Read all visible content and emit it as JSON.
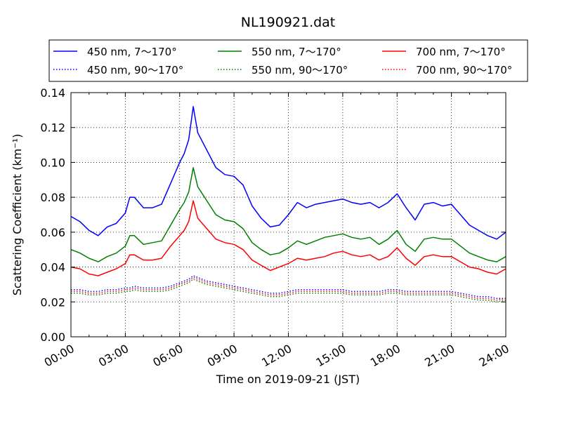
{
  "chart_data": {
    "type": "line",
    "title": "NL190921.dat",
    "xlabel": "Time on 2019-09-21 (JST)",
    "ylabel": "Scattering Coefficient (km⁻¹)",
    "x_unit": "hour of day",
    "xlim": [
      0,
      24
    ],
    "ylim": [
      0,
      0.14
    ],
    "x_ticks": [
      0,
      3,
      6,
      9,
      12,
      15,
      18,
      21,
      24
    ],
    "x_tick_labels": [
      "00:00",
      "03:00",
      "06:00",
      "09:00",
      "12:00",
      "15:00",
      "18:00",
      "21:00",
      "24:00"
    ],
    "y_ticks": [
      0,
      0.02,
      0.04,
      0.06,
      0.08,
      0.1,
      0.12,
      0.14
    ],
    "y_tick_labels": [
      "0.00",
      "0.02",
      "0.04",
      "0.06",
      "0.08",
      "0.10",
      "0.12",
      "0.14"
    ],
    "grid": true,
    "legend_position": "top, above plot, 3 columns",
    "x": [
      0,
      0.5,
      1,
      1.5,
      2,
      2.5,
      3,
      3.25,
      3.5,
      4,
      4.5,
      5,
      5.5,
      6,
      6.25,
      6.5,
      6.75,
      7,
      7.5,
      8,
      8.5,
      9,
      9.5,
      10,
      10.5,
      11,
      11.5,
      12,
      12.5,
      13,
      13.5,
      14,
      14.5,
      15,
      15.5,
      16,
      16.5,
      17,
      17.5,
      18,
      18.5,
      19,
      19.5,
      20,
      20.5,
      21,
      21.5,
      22,
      22.5,
      23,
      23.5,
      24
    ],
    "series": [
      {
        "name": "450 nm, 7～170°",
        "color": "#0000ff",
        "style": "solid",
        "values": [
          0.069,
          0.066,
          0.061,
          0.058,
          0.063,
          0.065,
          0.071,
          0.08,
          0.08,
          0.074,
          0.074,
          0.076,
          0.088,
          0.1,
          0.105,
          0.113,
          0.132,
          0.117,
          0.107,
          0.097,
          0.093,
          0.092,
          0.087,
          0.075,
          0.068,
          0.063,
          0.064,
          0.07,
          0.077,
          0.074,
          0.076,
          0.077,
          0.078,
          0.079,
          0.077,
          0.076,
          0.077,
          0.074,
          0.077,
          0.082,
          0.074,
          0.067,
          0.076,
          0.077,
          0.075,
          0.076,
          0.07,
          0.064,
          0.061,
          0.058,
          0.056,
          0.06
        ]
      },
      {
        "name": "550 nm, 7～170°",
        "color": "#008000",
        "style": "solid",
        "values": [
          0.05,
          0.048,
          0.045,
          0.043,
          0.046,
          0.048,
          0.052,
          0.058,
          0.058,
          0.053,
          0.054,
          0.055,
          0.064,
          0.073,
          0.077,
          0.083,
          0.097,
          0.086,
          0.078,
          0.07,
          0.067,
          0.066,
          0.062,
          0.054,
          0.05,
          0.047,
          0.048,
          0.051,
          0.055,
          0.053,
          0.055,
          0.057,
          0.058,
          0.059,
          0.057,
          0.056,
          0.057,
          0.053,
          0.056,
          0.061,
          0.053,
          0.049,
          0.056,
          0.057,
          0.056,
          0.056,
          0.052,
          0.048,
          0.046,
          0.044,
          0.043,
          0.046
        ]
      },
      {
        "name": "700 nm, 7～170°",
        "color": "#ff0000",
        "style": "solid",
        "values": [
          0.04,
          0.039,
          0.036,
          0.035,
          0.037,
          0.039,
          0.042,
          0.047,
          0.047,
          0.044,
          0.044,
          0.045,
          0.052,
          0.058,
          0.061,
          0.066,
          0.078,
          0.068,
          0.062,
          0.056,
          0.054,
          0.053,
          0.05,
          0.044,
          0.041,
          0.038,
          0.04,
          0.042,
          0.045,
          0.044,
          0.045,
          0.046,
          0.048,
          0.049,
          0.047,
          0.046,
          0.047,
          0.044,
          0.046,
          0.051,
          0.045,
          0.041,
          0.046,
          0.047,
          0.046,
          0.046,
          0.043,
          0.04,
          0.039,
          0.037,
          0.036,
          0.039
        ]
      },
      {
        "name": "450 nm, 90～170°",
        "color": "#0000ff",
        "style": "dotted",
        "values": [
          0.027,
          0.027,
          0.026,
          0.026,
          0.027,
          0.027,
          0.028,
          0.028,
          0.029,
          0.028,
          0.028,
          0.028,
          0.029,
          0.031,
          0.032,
          0.033,
          0.035,
          0.034,
          0.032,
          0.031,
          0.03,
          0.029,
          0.028,
          0.027,
          0.026,
          0.025,
          0.025,
          0.026,
          0.027,
          0.027,
          0.027,
          0.027,
          0.027,
          0.027,
          0.026,
          0.026,
          0.026,
          0.026,
          0.027,
          0.027,
          0.026,
          0.026,
          0.026,
          0.026,
          0.026,
          0.026,
          0.025,
          0.024,
          0.023,
          0.023,
          0.022,
          0.022
        ]
      },
      {
        "name": "550 nm, 90～170°",
        "color": "#008000",
        "style": "dotted",
        "values": [
          0.025,
          0.025,
          0.024,
          0.024,
          0.025,
          0.025,
          0.026,
          0.026,
          0.027,
          0.026,
          0.026,
          0.026,
          0.027,
          0.029,
          0.03,
          0.031,
          0.033,
          0.032,
          0.03,
          0.029,
          0.028,
          0.027,
          0.026,
          0.025,
          0.024,
          0.023,
          0.023,
          0.024,
          0.025,
          0.025,
          0.025,
          0.025,
          0.025,
          0.025,
          0.024,
          0.024,
          0.024,
          0.024,
          0.025,
          0.025,
          0.024,
          0.024,
          0.024,
          0.024,
          0.024,
          0.024,
          0.023,
          0.022,
          0.021,
          0.021,
          0.02,
          0.021
        ]
      },
      {
        "name": "700 nm, 90～170°",
        "color": "#ff0000",
        "style": "dotted",
        "values": [
          0.026,
          0.026,
          0.025,
          0.025,
          0.026,
          0.026,
          0.027,
          0.027,
          0.028,
          0.027,
          0.027,
          0.027,
          0.028,
          0.03,
          0.031,
          0.032,
          0.034,
          0.033,
          0.031,
          0.03,
          0.029,
          0.028,
          0.027,
          0.026,
          0.025,
          0.024,
          0.024,
          0.025,
          0.026,
          0.026,
          0.026,
          0.026,
          0.026,
          0.026,
          0.025,
          0.025,
          0.025,
          0.025,
          0.026,
          0.026,
          0.025,
          0.025,
          0.025,
          0.025,
          0.025,
          0.025,
          0.024,
          0.023,
          0.022,
          0.022,
          0.021,
          0.022
        ]
      }
    ]
  }
}
